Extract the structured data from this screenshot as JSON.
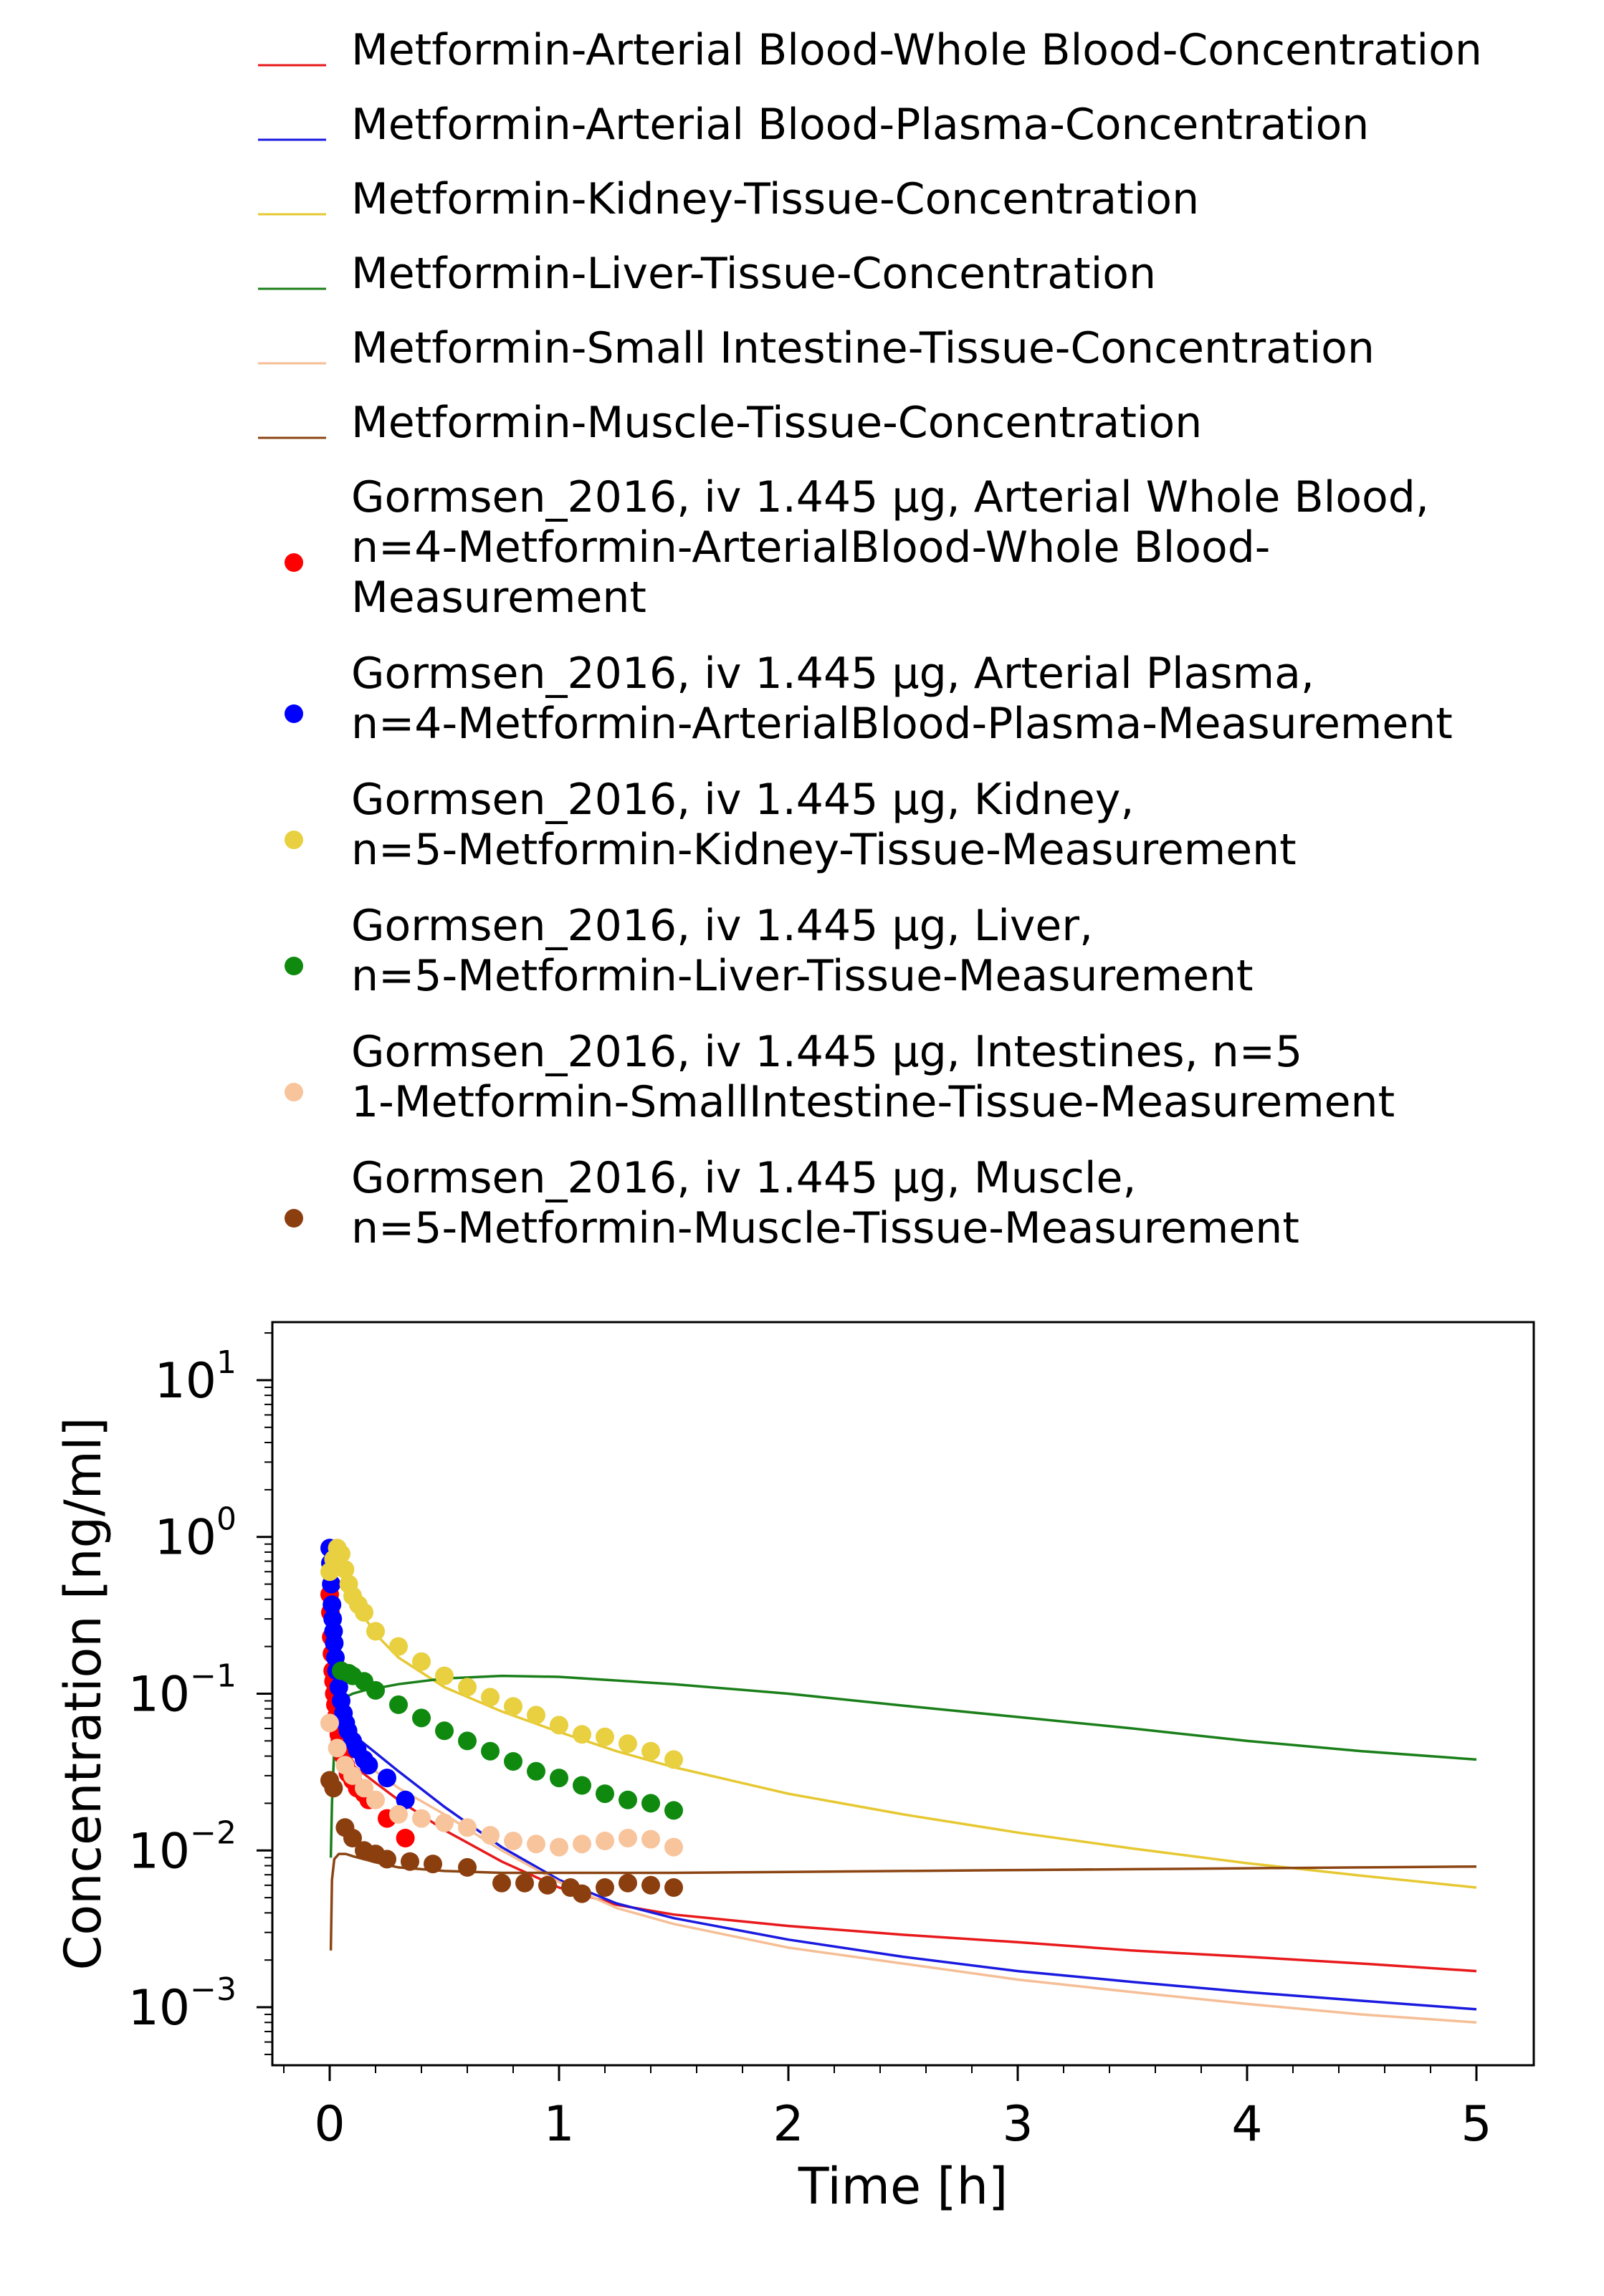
{
  "chart_data": {
    "type": "line",
    "title": "",
    "xlabel": "Time [h]",
    "ylabel": "Concentration [ng/ml]",
    "xlim": [
      -0.25,
      5.25
    ],
    "ylim_log10": [
      -3.37,
      1.37
    ],
    "y_scale": "log",
    "grid": false,
    "legend_position": "top",
    "x_ticks": [
      {
        "value": 0,
        "label": "0"
      },
      {
        "value": 1,
        "label": "1"
      },
      {
        "value": 2,
        "label": "2"
      },
      {
        "value": 3,
        "label": "3"
      },
      {
        "value": 4,
        "label": "4"
      },
      {
        "value": 5,
        "label": "5"
      }
    ],
    "y_ticks": [
      {
        "value": 10,
        "base": "10",
        "exp": "1"
      },
      {
        "value": 1,
        "base": "10",
        "exp": "0"
      },
      {
        "value": 0.1,
        "base": "10",
        "exp": "−1"
      },
      {
        "value": 0.01,
        "base": "10",
        "exp": "−2"
      },
      {
        "value": 0.001,
        "base": "10",
        "exp": "−3"
      }
    ],
    "series": [
      {
        "name": "Metformin-Arterial Blood-Whole Blood-Concentration",
        "kind": "line",
        "color": "#e8191b",
        "x": [
          0.01,
          0.03,
          0.06,
          0.1,
          0.2,
          0.3,
          0.5,
          0.75,
          1.0,
          1.25,
          1.5,
          2.0,
          2.5,
          3.0,
          3.5,
          4.0,
          4.5,
          5.0
        ],
        "y": [
          0.1,
          0.06,
          0.042,
          0.035,
          0.027,
          0.021,
          0.0135,
          0.0085,
          0.0058,
          0.0045,
          0.0039,
          0.0033,
          0.0029,
          0.0026,
          0.0023,
          0.0021,
          0.0019,
          0.0017
        ]
      },
      {
        "name": "Metformin-Arterial Blood-Plasma-Concentration",
        "kind": "line",
        "color": "#1a1ae0",
        "x": [
          0.01,
          0.03,
          0.06,
          0.1,
          0.2,
          0.3,
          0.5,
          0.75,
          1.0,
          1.25,
          1.5,
          2.0,
          2.5,
          3.0,
          3.5,
          4.0,
          4.5,
          5.0
        ],
        "y": [
          0.22,
          0.1,
          0.07,
          0.055,
          0.042,
          0.032,
          0.019,
          0.0105,
          0.0065,
          0.0046,
          0.0037,
          0.0027,
          0.0021,
          0.0017,
          0.00145,
          0.00125,
          0.0011,
          0.00097
        ]
      },
      {
        "name": "Metformin-Kidney-Tissue-Concentration",
        "kind": "line",
        "color": "#e6c832",
        "x": [
          0.01,
          0.02,
          0.03,
          0.05,
          0.07,
          0.1,
          0.15,
          0.2,
          0.3,
          0.5,
          0.75,
          1.0,
          1.25,
          1.5,
          2.0,
          2.5,
          3.0,
          3.5,
          4.0,
          4.5,
          5.0
        ],
        "y": [
          0.3,
          0.55,
          0.72,
          0.75,
          0.6,
          0.45,
          0.31,
          0.24,
          0.17,
          0.11,
          0.077,
          0.057,
          0.043,
          0.034,
          0.023,
          0.017,
          0.013,
          0.0103,
          0.0083,
          0.0069,
          0.0058
        ]
      },
      {
        "name": "Metformin-Liver-Tissue-Concentration",
        "kind": "line",
        "color": "#1a7f1a",
        "x": [
          0.005,
          0.01,
          0.02,
          0.04,
          0.07,
          0.1,
          0.15,
          0.2,
          0.3,
          0.5,
          0.75,
          1.0,
          1.5,
          2.0,
          2.5,
          3.0,
          3.5,
          4.0,
          4.5,
          5.0
        ],
        "y": [
          0.009,
          0.02,
          0.045,
          0.075,
          0.095,
          0.1,
          0.105,
          0.108,
          0.115,
          0.125,
          0.13,
          0.128,
          0.115,
          0.1,
          0.084,
          0.071,
          0.06,
          0.05,
          0.043,
          0.038
        ]
      },
      {
        "name": "Metformin-Small Intestine-Tissue-Concentration",
        "kind": "line",
        "color": "#f5be96",
        "x": [
          0.01,
          0.03,
          0.06,
          0.1,
          0.2,
          0.3,
          0.5,
          0.75,
          1.0,
          1.25,
          1.5,
          2.0,
          2.5,
          3.0,
          3.5,
          4.0,
          4.5,
          5.0
        ],
        "y": [
          0.06,
          0.05,
          0.045,
          0.04,
          0.032,
          0.025,
          0.017,
          0.01,
          0.0063,
          0.0043,
          0.0034,
          0.0024,
          0.0019,
          0.0015,
          0.00125,
          0.00105,
          0.0009,
          0.0008
        ]
      },
      {
        "name": "Metformin-Muscle-Tissue-Concentration",
        "kind": "line",
        "color": "#8b4513",
        "x": [
          0.005,
          0.01,
          0.02,
          0.04,
          0.07,
          0.1,
          0.2,
          0.3,
          0.5,
          0.75,
          1.0,
          1.5,
          2.0,
          2.5,
          3.0,
          3.5,
          4.0,
          4.5,
          5.0
        ],
        "y": [
          0.0023,
          0.0065,
          0.0088,
          0.0095,
          0.0095,
          0.0092,
          0.0084,
          0.0078,
          0.0074,
          0.0072,
          0.0072,
          0.0072,
          0.0073,
          0.0074,
          0.0075,
          0.0076,
          0.0077,
          0.0078,
          0.0079
        ]
      },
      {
        "name": "Gormsen_2016, iv 1.445 µg, Arterial Whole Blood, n=4-Metformin-ArterialBlood-Whole Blood-Measurement",
        "name_lines": [
          "Gormsen_2016, iv 1.445 µg, Arterial Whole Blood,",
          "n=4-Metformin-ArterialBlood-Whole Blood-",
          "Measurement"
        ],
        "kind": "scatter",
        "color": "#ff0000",
        "x": [
          0.0,
          0.003,
          0.007,
          0.01,
          0.013,
          0.017,
          0.02,
          0.025,
          0.03,
          0.035,
          0.04,
          0.045,
          0.05,
          0.055,
          0.06,
          0.07,
          0.08,
          0.1,
          0.12,
          0.15,
          0.17,
          0.25,
          0.33
        ],
        "y": [
          0.43,
          0.33,
          0.23,
          0.18,
          0.14,
          0.12,
          0.1,
          0.085,
          0.072,
          0.062,
          0.055,
          0.05,
          0.045,
          0.042,
          0.04,
          0.035,
          0.031,
          0.028,
          0.025,
          0.023,
          0.021,
          0.016,
          0.012
        ]
      },
      {
        "name": "Gormsen_2016, iv 1.445 µg, Arterial Plasma, n=4-Metformin-ArterialBlood-Plasma-Measurement",
        "name_lines": [
          "Gormsen_2016, iv 1.445 µg, Arterial Plasma,",
          "n=4-Metformin-ArterialBlood-Plasma-Measurement"
        ],
        "kind": "scatter",
        "color": "#0000ff",
        "x": [
          0.0,
          0.003,
          0.007,
          0.01,
          0.013,
          0.017,
          0.02,
          0.025,
          0.03,
          0.04,
          0.05,
          0.06,
          0.07,
          0.08,
          0.1,
          0.12,
          0.15,
          0.17,
          0.25,
          0.33
        ],
        "y": [
          0.85,
          0.68,
          0.5,
          0.37,
          0.3,
          0.25,
          0.21,
          0.17,
          0.14,
          0.11,
          0.09,
          0.075,
          0.065,
          0.058,
          0.05,
          0.044,
          0.038,
          0.035,
          0.029,
          0.021
        ]
      },
      {
        "name": "Gormsen_2016, iv 1.445 µg, Kidney, n=5-Metformin-Kidney-Tissue-Measurement",
        "name_lines": [
          "Gormsen_2016, iv 1.445 µg, Kidney,",
          "n=5-Metformin-Kidney-Tissue-Measurement"
        ],
        "kind": "scatter",
        "color": "#e8d040",
        "x": [
          0.0,
          0.017,
          0.033,
          0.05,
          0.067,
          0.083,
          0.1,
          0.125,
          0.15,
          0.2,
          0.3,
          0.4,
          0.5,
          0.6,
          0.7,
          0.8,
          0.9,
          1.0,
          1.1,
          1.2,
          1.3,
          1.4,
          1.5
        ],
        "y": [
          0.6,
          0.72,
          0.85,
          0.78,
          0.62,
          0.5,
          0.42,
          0.37,
          0.33,
          0.25,
          0.2,
          0.16,
          0.13,
          0.11,
          0.095,
          0.083,
          0.073,
          0.063,
          0.055,
          0.053,
          0.048,
          0.043,
          0.038
        ]
      },
      {
        "name": "Gormsen_2016, iv 1.445 µg, Liver, n=5-Metformin-Liver-Tissue-Measurement",
        "name_lines": [
          "Gormsen_2016, iv 1.445 µg, Liver,",
          "n=5-Metformin-Liver-Tissue-Measurement"
        ],
        "kind": "scatter",
        "color": "#0f8a0f",
        "x": [
          0.05,
          0.083,
          0.1,
          0.15,
          0.2,
          0.3,
          0.4,
          0.5,
          0.6,
          0.7,
          0.8,
          0.9,
          1.0,
          1.1,
          1.2,
          1.3,
          1.4,
          1.5
        ],
        "y": [
          0.14,
          0.135,
          0.13,
          0.12,
          0.105,
          0.085,
          0.07,
          0.058,
          0.05,
          0.043,
          0.037,
          0.032,
          0.029,
          0.026,
          0.023,
          0.021,
          0.02,
          0.018
        ]
      },
      {
        "name": "Gormsen_2016, iv 1.445 µg, Intestines, n=5 1-Metformin-SmallIntestine-Tissue-Measurement",
        "name_lines": [
          "Gormsen_2016, iv 1.445 µg, Intestines, n=5",
          "1-Metformin-SmallIntestine-Tissue-Measurement"
        ],
        "kind": "scatter",
        "color": "#f8c49c",
        "x": [
          0.0,
          0.033,
          0.067,
          0.1,
          0.15,
          0.2,
          0.3,
          0.4,
          0.5,
          0.6,
          0.7,
          0.8,
          0.9,
          1.0,
          1.1,
          1.2,
          1.3,
          1.4,
          1.5
        ],
        "y": [
          0.065,
          0.045,
          0.035,
          0.03,
          0.025,
          0.021,
          0.017,
          0.016,
          0.015,
          0.014,
          0.0125,
          0.0115,
          0.011,
          0.0105,
          0.011,
          0.0115,
          0.012,
          0.0118,
          0.0105
        ]
      },
      {
        "name": "Gormsen_2016, iv 1.445 µg, Muscle, n=5-Metformin-Muscle-Tissue-Measurement",
        "name_lines": [
          "Gormsen_2016, iv 1.445 µg, Muscle,",
          "n=5-Metformin-Muscle-Tissue-Measurement"
        ],
        "kind": "scatter",
        "color": "#8b3e0e",
        "x": [
          0.0,
          0.017,
          0.067,
          0.1,
          0.15,
          0.2,
          0.25,
          0.35,
          0.45,
          0.6,
          0.75,
          0.85,
          0.95,
          1.05,
          1.1,
          1.2,
          1.3,
          1.4,
          1.5
        ],
        "y": [
          0.028,
          0.025,
          0.014,
          0.012,
          0.01,
          0.0095,
          0.0088,
          0.0085,
          0.0082,
          0.0078,
          0.0062,
          0.0062,
          0.006,
          0.0058,
          0.0053,
          0.0058,
          0.0062,
          0.006,
          0.0058
        ]
      }
    ]
  }
}
